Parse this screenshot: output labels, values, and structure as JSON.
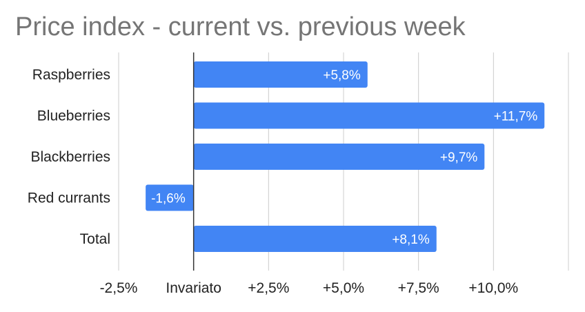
{
  "chart_data": {
    "type": "bar",
    "orientation": "horizontal",
    "title": "Price index - current vs. previous week",
    "categories": [
      "Raspberries",
      "Blueberries",
      "Blackberries",
      "Red currants",
      "Total"
    ],
    "values": [
      5.8,
      11.7,
      9.7,
      -1.6,
      8.1
    ],
    "data_labels": [
      "+5,8%",
      "+11,7%",
      "+9,7%",
      "-1,6%",
      "+8,1%"
    ],
    "x_ticks": [
      -2.5,
      0,
      2.5,
      5.0,
      7.5,
      10.0,
      12.5
    ],
    "x_tick_labels": [
      "-2,5%",
      "Invariato",
      "+2,5%",
      "+5,0%",
      "+7,5%",
      "+10,0%",
      ""
    ],
    "xlim": [
      -2.5,
      12.5
    ],
    "grid": true,
    "legend": "none",
    "bar_color": "#4285f4",
    "grid_color": "#cccccc",
    "zero_line_color": "#333333"
  }
}
